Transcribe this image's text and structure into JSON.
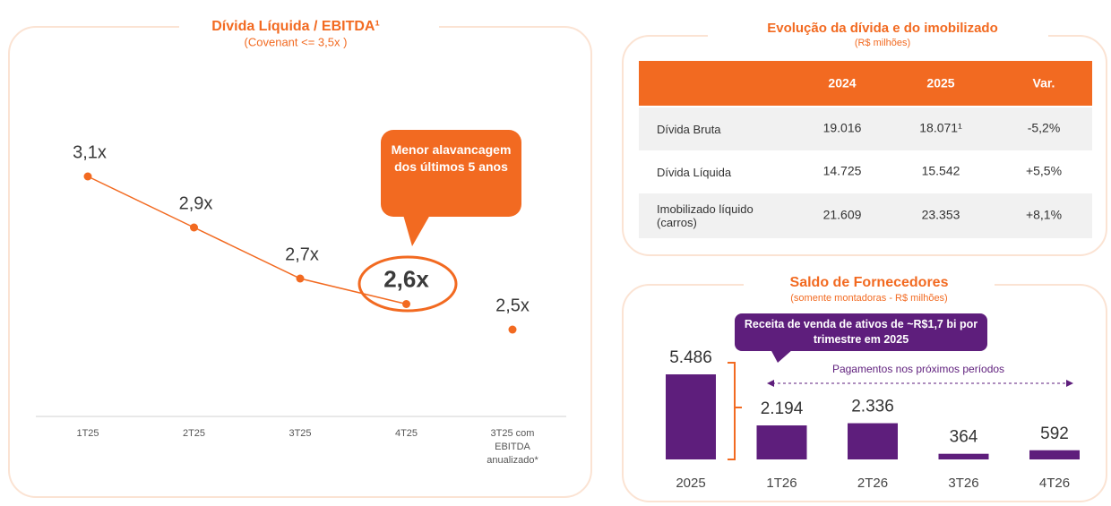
{
  "chart_data": [
    {
      "type": "line",
      "title": "Dívida Líquida / EBITDA¹",
      "subtitle": "(Covenant <= 3,5x )",
      "categories": [
        "1T25",
        "2T25",
        "3T25",
        "4T25",
        "3T25 com EBITDA anualizado*"
      ],
      "series": [
        {
          "color": "#f26a21",
          "values": [
            3.1,
            2.9,
            2.7,
            2.6,
            null
          ],
          "value_labels": [
            "3,1x",
            "2,9x",
            "2,7x",
            "2,6x",
            null
          ]
        },
        {
          "color": "#f26a21",
          "values": [
            null,
            null,
            null,
            null,
            2.5
          ],
          "value_labels": [
            null,
            null,
            null,
            null,
            "2,5x"
          ]
        }
      ],
      "annotation": "Menor alavancagem dos últimos 5 anos"
    },
    {
      "type": "bar",
      "title": "Saldo de Fornecedores",
      "subtitle": "(somente montadoras - R$ milhões)",
      "categories": [
        "2025",
        "1T26",
        "2T26",
        "3T26",
        "4T26"
      ],
      "values": [
        5486,
        2194,
        2336,
        364,
        592
      ],
      "value_labels": [
        "5.486",
        "2.194",
        "2.336",
        "364",
        "592"
      ],
      "color": "#5e1e7c",
      "annotations": [
        "Receita de venda de ativos de ~R$1,7 bi por trimestre em 2025",
        "Pagamentos nos próximos períodos"
      ]
    }
  ],
  "table": {
    "title": "Evolução da dívida e do imobilizado",
    "subtitle": "(R$ milhões)",
    "header": [
      "2024",
      "2025",
      "Var."
    ],
    "rows": [
      [
        "Dívida Bruta",
        "19.016",
        "18.071¹",
        "-5,2%"
      ],
      [
        "Dívida Líquida",
        "14.725",
        "15.542",
        "+5,5%"
      ],
      [
        "Imobilizado líquido (carros)",
        "21.609",
        "23.353",
        "+8,1%"
      ]
    ]
  }
}
